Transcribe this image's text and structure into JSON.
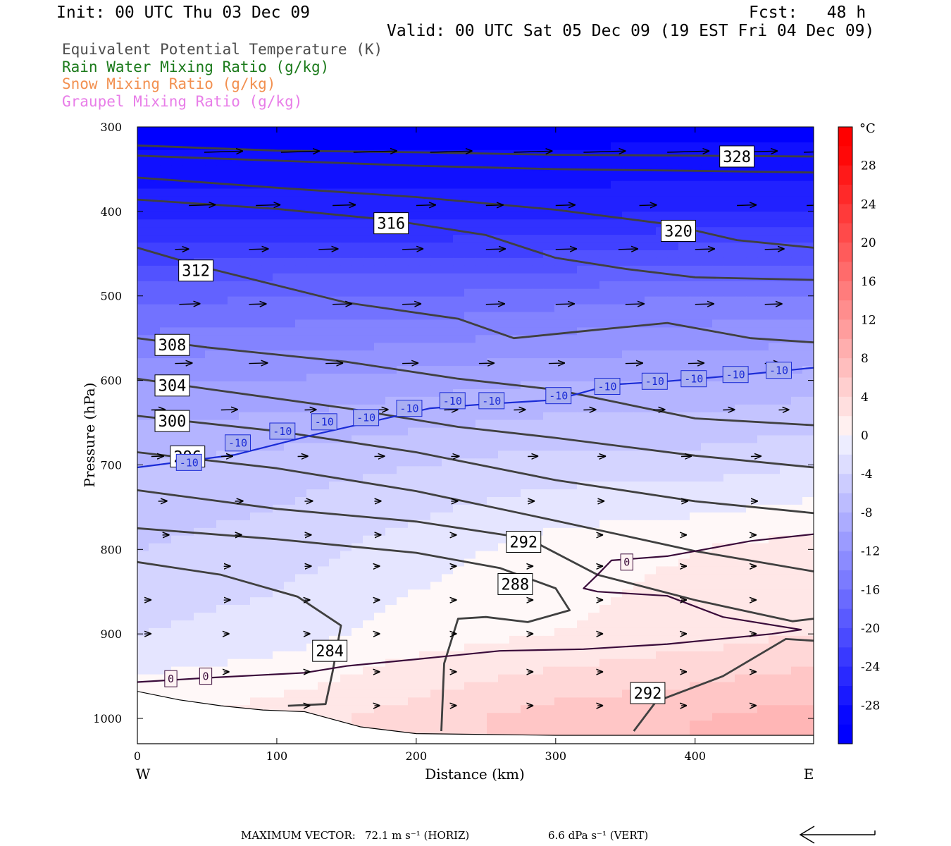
{
  "header": {
    "init": "Init: 00 UTC Thu 03 Dec 09",
    "fcst": "Fcst:   48 h",
    "valid": "Valid: 00 UTC Sat 05 Dec 09 (19 EST Fri 04 Dec 09)"
  },
  "legend": [
    {
      "label": "Equivalent Potential Temperature (K)",
      "color": "#4d4d4d"
    },
    {
      "label": "Rain Water Mixing Ratio (g/kg)",
      "color": "#1b7a1b"
    },
    {
      "label": "Snow Mixing Ratio (g/kg)",
      "color": "#f29050"
    },
    {
      "label": "Graupel Mixing Ratio (g/kg)",
      "color": "#e87de8"
    }
  ],
  "chart_data": {
    "type": "heatmap",
    "title": "",
    "xlabel": "Distance (km)",
    "ylabel": "Pressure (hPa)",
    "xlim": [
      0,
      485
    ],
    "ylim": [
      1030,
      300
    ],
    "y_scale": "linear",
    "x_ticks": [
      "0",
      "100",
      "200",
      "300",
      "400"
    ],
    "x_tick_values": [
      0,
      100,
      200,
      300,
      400
    ],
    "y_ticks": [
      "300",
      "400",
      "500",
      "600",
      "700",
      "800",
      "900",
      "1000"
    ],
    "y_tick_values": [
      300,
      400,
      500,
      600,
      700,
      800,
      900,
      1000
    ],
    "x_end_labels": {
      "left": "W",
      "right": "E"
    },
    "colorbar": {
      "unit": "°C",
      "range": [
        -32,
        32
      ],
      "tick_labels": [
        "28",
        "24",
        "20",
        "16",
        "12",
        "8",
        "4",
        "0",
        "-4",
        "-8",
        "-12",
        "-16",
        "-20",
        "-24",
        "-28"
      ],
      "tick_values": [
        28,
        24,
        20,
        16,
        12,
        8,
        4,
        0,
        -4,
        -8,
        -12,
        -16,
        -20,
        -24,
        -28
      ]
    },
    "temperature_field_c": {
      "x": [
        0,
        100,
        200,
        300,
        400,
        485
      ],
      "p": [
        300,
        400,
        500,
        600,
        700,
        800,
        900,
        1000
      ],
      "values": [
        [
          -30,
          -30,
          -30,
          -30,
          -30,
          -30
        ],
        [
          -26,
          -26,
          -26,
          -26,
          -25,
          -25
        ],
        [
          -18,
          -17,
          -17,
          -16,
          -15,
          -15
        ],
        [
          -11,
          -11,
          -10,
          -9,
          -9,
          -8
        ],
        [
          -7,
          -6,
          -5,
          -4,
          -4,
          -3
        ],
        [
          -5,
          -4,
          -2,
          0,
          1,
          2
        ],
        [
          -3,
          -2,
          0,
          1,
          2,
          3
        ],
        [
          1,
          2,
          4,
          6,
          7,
          8
        ]
      ]
    },
    "theta_e_contours": [
      {
        "label": "328",
        "points": [
          [
            0,
            322
          ],
          [
            100,
            328
          ],
          [
            200,
            330
          ],
          [
            300,
            333
          ],
          [
            400,
            334
          ],
          [
            485,
            335
          ]
        ],
        "label_at": [
          430,
          335
        ]
      },
      {
        "label": "",
        "points": [
          [
            0,
            334
          ],
          [
            100,
            340
          ],
          [
            200,
            346
          ],
          [
            300,
            350
          ],
          [
            400,
            352
          ],
          [
            485,
            354
          ]
        ]
      },
      {
        "label": "320",
        "points": [
          [
            0,
            360
          ],
          [
            100,
            372
          ],
          [
            200,
            383
          ],
          [
            300,
            398
          ],
          [
            380,
            415
          ],
          [
            430,
            434
          ],
          [
            485,
            443
          ]
        ],
        "label_at": [
          388,
          423
        ]
      },
      {
        "label": "316",
        "points": [
          [
            0,
            386
          ],
          [
            100,
            397
          ],
          [
            180,
            410
          ],
          [
            250,
            428
          ],
          [
            300,
            455
          ],
          [
            350,
            468
          ],
          [
            400,
            478
          ],
          [
            485,
            481
          ]
        ],
        "label_at": [
          182,
          414
        ]
      },
      {
        "label": "312",
        "points": [
          [
            0,
            443
          ],
          [
            50,
            467
          ],
          [
            150,
            508
          ],
          [
            230,
            527
          ],
          [
            270,
            550
          ],
          [
            330,
            540
          ],
          [
            380,
            532
          ],
          [
            440,
            550
          ],
          [
            485,
            555
          ]
        ],
        "label_at": [
          42,
          470
        ]
      },
      {
        "label": "308",
        "points": [
          [
            0,
            550
          ],
          [
            50,
            561
          ],
          [
            150,
            578
          ],
          [
            230,
            598
          ],
          [
            300,
            611
          ],
          [
            400,
            645
          ],
          [
            485,
            653
          ]
        ],
        "label_at": [
          25,
          558
        ]
      },
      {
        "label": "304",
        "points": [
          [
            0,
            598
          ],
          [
            50,
            610
          ],
          [
            150,
            633
          ],
          [
            230,
            655
          ],
          [
            300,
            668
          ],
          [
            400,
            689
          ],
          [
            485,
            703
          ]
        ],
        "label_at": [
          25,
          606
        ]
      },
      {
        "label": "300",
        "points": [
          [
            0,
            642
          ],
          [
            100,
            660
          ],
          [
            200,
            685
          ],
          [
            300,
            718
          ],
          [
            400,
            743
          ],
          [
            485,
            757
          ]
        ],
        "label_at": [
          25,
          648
        ]
      },
      {
        "label": "296",
        "points": [
          [
            0,
            685
          ],
          [
            100,
            704
          ],
          [
            200,
            731
          ],
          [
            300,
            766
          ],
          [
            400,
            802
          ],
          [
            485,
            826
          ]
        ],
        "label_at": [
          36,
          690
        ]
      },
      {
        "label": "292",
        "points": [
          [
            0,
            730
          ],
          [
            100,
            752
          ],
          [
            200,
            767
          ],
          [
            280,
            787
          ],
          [
            330,
            830
          ],
          [
            400,
            860
          ],
          [
            470,
            885
          ],
          [
            485,
            882
          ]
        ],
        "label_at": [
          277,
          791
        ]
      },
      {
        "label": "288",
        "points": [
          [
            0,
            775
          ],
          [
            100,
            788
          ],
          [
            200,
            804
          ],
          [
            260,
            822
          ],
          [
            300,
            846
          ],
          [
            310,
            872
          ],
          [
            280,
            886
          ],
          [
            250,
            880
          ],
          [
            230,
            882
          ],
          [
            220,
            935
          ],
          [
            218,
            1015
          ]
        ],
        "label_at": [
          271,
          841
        ]
      },
      {
        "label": "284",
        "points": [
          [
            0,
            815
          ],
          [
            60,
            830
          ],
          [
            115,
            856
          ],
          [
            146,
            890
          ],
          [
            140,
            945
          ],
          [
            135,
            983
          ],
          [
            108,
            985
          ]
        ],
        "label_at": [
          138,
          920
        ]
      },
      {
        "label": "292",
        "points": [
          [
            356,
            1015
          ],
          [
            372,
            980
          ],
          [
            420,
            950
          ],
          [
            465,
            906
          ],
          [
            485,
            908
          ]
        ],
        "label_at": [
          366,
          970
        ]
      }
    ],
    "isotherms": [
      {
        "label": "-10",
        "color": "#1a2bd6",
        "points": [
          [
            0,
            703
          ],
          [
            70,
            688
          ],
          [
            130,
            663
          ],
          [
            210,
            633
          ],
          [
            250,
            628
          ],
          [
            300,
            623
          ],
          [
            340,
            605
          ],
          [
            380,
            601
          ],
          [
            430,
            594
          ],
          [
            485,
            585
          ]
        ],
        "labels_at": [
          [
            37,
            697
          ],
          [
            72,
            674
          ],
          [
            104,
            660
          ],
          [
            134,
            649
          ],
          [
            164,
            644
          ],
          [
            195,
            633
          ],
          [
            226,
            624
          ],
          [
            254,
            624
          ],
          [
            302,
            618
          ],
          [
            337,
            607
          ],
          [
            371,
            601
          ],
          [
            399,
            598
          ],
          [
            429,
            593
          ],
          [
            460,
            588
          ]
        ]
      },
      {
        "label": "0",
        "color": "#3a0b3a",
        "points": [
          [
            0,
            957
          ],
          [
            50,
            952
          ],
          [
            120,
            946
          ],
          [
            150,
            938
          ],
          [
            200,
            930
          ],
          [
            260,
            920
          ],
          [
            320,
            918
          ],
          [
            380,
            912
          ],
          [
            455,
            900
          ],
          [
            476,
            895
          ],
          [
            420,
            880
          ],
          [
            380,
            855
          ],
          [
            330,
            850
          ],
          [
            320,
            846
          ],
          [
            330,
            830
          ],
          [
            340,
            813
          ],
          [
            380,
            808
          ],
          [
            440,
            790
          ],
          [
            485,
            782
          ]
        ],
        "labels_at": [
          [
            24,
            953
          ],
          [
            49,
            950
          ],
          [
            351,
            815
          ]
        ]
      }
    ],
    "terrain_p": [
      [
        0,
        968
      ],
      [
        30,
        978
      ],
      [
        60,
        985
      ],
      [
        90,
        990
      ],
      [
        120,
        992
      ],
      [
        160,
        1010
      ],
      [
        200,
        1018
      ],
      [
        300,
        1020
      ],
      [
        400,
        1020
      ],
      [
        485,
        1020
      ]
    ],
    "wind_vectors": [
      {
        "p": 330,
        "x": [
          48,
          103,
          155,
          210,
          270,
          320,
          380,
          430,
          478
        ],
        "len": [
          55,
          55,
          62,
          60,
          55,
          60,
          60,
          58,
          55
        ]
      },
      {
        "p": 393,
        "x": [
          37,
          85,
          140,
          200,
          250,
          300,
          360,
          430,
          480
        ],
        "len": [
          38,
          35,
          33,
          28,
          25,
          28,
          25,
          28,
          38
        ]
      },
      {
        "p": 445,
        "x": [
          27,
          80,
          130,
          190,
          250,
          300,
          345,
          400,
          450
        ],
        "len": [
          20,
          28,
          28,
          30,
          28,
          30,
          28,
          28,
          28
        ]
      },
      {
        "p": 510,
        "x": [
          30,
          80,
          140,
          190,
          250,
          300,
          350,
          400,
          450
        ],
        "len": [
          30,
          25,
          28,
          27,
          27,
          27,
          27,
          27,
          25
        ]
      },
      {
        "p": 580,
        "x": [
          27,
          80,
          135,
          190,
          245,
          295,
          350,
          395,
          450
        ],
        "len": [
          25,
          27,
          25,
          23,
          22,
          23,
          25,
          23,
          22
        ]
      },
      {
        "p": 635,
        "x": [
          10,
          60,
          120,
          170,
          220,
          270,
          320,
          370,
          420,
          460
        ],
        "len": [
          20,
          24,
          17,
          20,
          20,
          17,
          18,
          17,
          17,
          15
        ]
      },
      {
        "p": 690,
        "x": [
          10,
          60,
          115,
          170,
          225,
          280,
          330,
          390,
          440
        ],
        "len": [
          18,
          17,
          15,
          15,
          12,
          15,
          12,
          15,
          15
        ]
      },
      {
        "p": 743,
        "x": [
          15,
          70,
          120,
          170,
          225,
          280,
          330,
          390,
          440
        ],
        "len": [
          13,
          12,
          12,
          10,
          10,
          10,
          10,
          10,
          10
        ]
      },
      {
        "p": 783,
        "x": [
          18,
          70,
          120,
          170,
          225,
          280,
          330,
          390,
          440
        ],
        "len": [
          10,
          10,
          10,
          10,
          8,
          8,
          8,
          8,
          8
        ]
      },
      {
        "p": 820,
        "x": [
          62,
          120,
          170,
          225,
          280,
          330,
          390,
          440
        ],
        "len": [
          10,
          10,
          8,
          8,
          8,
          8,
          8,
          8
        ]
      },
      {
        "p": 860,
        "x": [
          5,
          62,
          120,
          170,
          225,
          280,
          330,
          390,
          440
        ],
        "len": [
          10,
          10,
          8,
          8,
          8,
          8,
          8,
          8,
          8
        ]
      },
      {
        "p": 900,
        "x": [
          5,
          62,
          120,
          170,
          225,
          280,
          330,
          390,
          440
        ],
        "len": [
          10,
          8,
          8,
          8,
          8,
          8,
          8,
          8,
          8
        ]
      },
      {
        "p": 945,
        "x": [
          62,
          120,
          170,
          225,
          280,
          330,
          390,
          440
        ],
        "len": [
          8,
          8,
          8,
          8,
          8,
          8,
          8,
          8
        ]
      },
      {
        "p": 985,
        "x": [
          120,
          170,
          225,
          280,
          330,
          390,
          440
        ],
        "len": [
          8,
          8,
          8,
          8,
          8,
          8,
          8
        ]
      }
    ]
  },
  "footer": {
    "max_vector_label": "MAXIMUM VECTOR:",
    "horiz_value": "72.1 m s⁻¹ (HORIZ)",
    "vert_value": "6.6 dPa s⁻¹ (VERT)"
  }
}
